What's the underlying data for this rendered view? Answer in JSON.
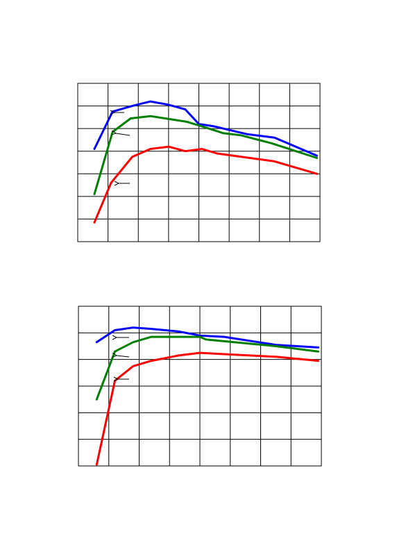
{
  "chart_data": [
    {
      "type": "line",
      "title": "",
      "xlabel": "",
      "ylabel": "",
      "grid": true,
      "xlim": [
        0,
        8
      ],
      "ylim": [
        0,
        7
      ],
      "colors": [
        "#0000ff",
        "#008000",
        "#ff0000"
      ],
      "annotations": [
        "arrow",
        "arrow",
        "arrow"
      ],
      "series": [
        {
          "color": "#0000ff",
          "x": [
            0.55,
            1.15,
            1.8,
            2.4,
            3.0,
            3.55,
            4.0,
            4.5,
            5.6,
            6.5,
            7.9
          ],
          "y": [
            4.1,
            5.75,
            6.0,
            6.2,
            6.05,
            5.85,
            5.2,
            5.1,
            4.75,
            4.6,
            3.8
          ]
        },
        {
          "color": "#008000",
          "x": [
            0.55,
            1.15,
            1.75,
            2.4,
            3.6,
            4.1,
            4.8,
            5.4,
            6.4,
            7.9
          ],
          "y": [
            2.1,
            4.85,
            5.45,
            5.55,
            5.3,
            5.1,
            4.8,
            4.7,
            4.35,
            3.7
          ]
        },
        {
          "color": "#ff0000",
          "x": [
            0.55,
            1.1,
            1.8,
            2.4,
            3.0,
            3.55,
            4.1,
            4.6,
            6.5,
            7.9
          ],
          "y": [
            0.85,
            2.6,
            3.75,
            4.1,
            4.2,
            4.0,
            4.1,
            3.9,
            3.55,
            3.0
          ]
        }
      ]
    },
    {
      "type": "line",
      "title": "",
      "xlabel": "",
      "ylabel": "",
      "grid": true,
      "xlim": [
        0,
        8
      ],
      "ylim": [
        0,
        6
      ],
      "colors": [
        "#0000ff",
        "#008000",
        "#ff0000"
      ],
      "annotations": [
        "arrow",
        "arrow",
        "arrow"
      ],
      "series": [
        {
          "color": "#0000ff",
          "x": [
            0.6,
            1.2,
            1.8,
            2.4,
            3.3,
            4.0,
            4.8,
            6.5,
            7.9
          ],
          "y": [
            4.65,
            5.1,
            5.2,
            5.15,
            5.05,
            4.9,
            4.85,
            4.55,
            4.45
          ]
        },
        {
          "color": "#008000",
          "x": [
            0.6,
            1.2,
            1.8,
            2.4,
            3.3,
            4.0,
            4.2,
            5.6,
            6.5,
            7.9
          ],
          "y": [
            2.5,
            4.3,
            4.65,
            4.85,
            4.85,
            4.85,
            4.75,
            4.6,
            4.5,
            4.3
          ]
        },
        {
          "color": "#ff0000",
          "x": [
            0.6,
            1.2,
            1.8,
            2.4,
            3.3,
            4.0,
            4.8,
            6.5,
            7.9
          ],
          "y": [
            0.05,
            3.2,
            3.75,
            3.95,
            4.15,
            4.25,
            4.2,
            4.1,
            3.95
          ]
        }
      ]
    }
  ]
}
